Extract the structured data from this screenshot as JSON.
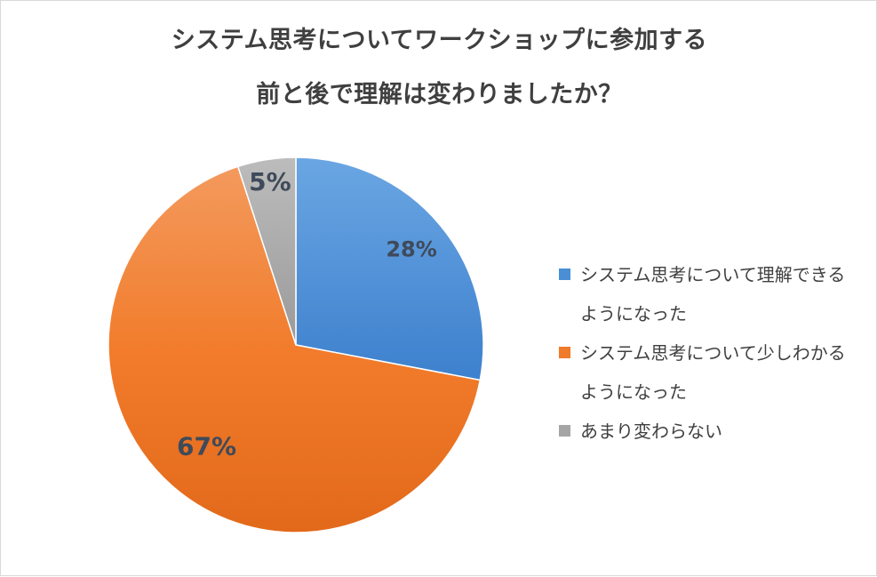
{
  "chart_data": {
    "type": "pie",
    "title_lines": [
      "システム思考についてワークショップに参加する",
      "前と後で理解は変わりましたか？"
    ],
    "slices": [
      {
        "label_lines": [
          "システム思考について理解できる",
          "ようになった"
        ],
        "value": 28,
        "display": "28%",
        "color": "#4a8fd6"
      },
      {
        "label_lines": [
          "システム思考について少しわかる",
          "ようになった"
        ],
        "value": 67,
        "display": "67%",
        "color": "#ee7a2a"
      },
      {
        "label_lines": [
          "あまり変わらない"
        ],
        "value": 5,
        "display": "5%",
        "color": "#a5a5a5"
      }
    ],
    "legend_position": "right"
  }
}
